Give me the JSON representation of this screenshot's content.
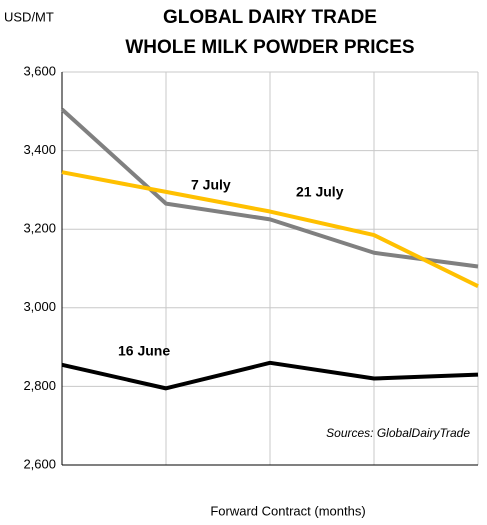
{
  "chart_data": {
    "type": "line",
    "title": [
      "GLOBAL DAIRY TRADE",
      "WHOLE MILK POWDER PRICES"
    ],
    "y_axis_label": "USD/MT",
    "x_axis_label": "Forward Contract (months)",
    "annotation": "Sources: GlobalDairyTrade",
    "categories": [
      null,
      null,
      null,
      null,
      null
    ],
    "series": [
      {
        "name": "16 June",
        "color": "#000000",
        "values": [
          2855,
          2795,
          2860,
          2820,
          2830
        ]
      },
      {
        "name": "7 July",
        "color": "#808080",
        "values": [
          3505,
          3265,
          3225,
          3140,
          3105
        ]
      },
      {
        "name": "21 July",
        "color": "#ffc000",
        "values": [
          3345,
          3295,
          3245,
          3185,
          3055
        ]
      }
    ],
    "ylim": [
      2600,
      3600
    ],
    "yticks": [
      {
        "value": 2600,
        "label": "2,600"
      },
      {
        "value": 2800,
        "label": "2,800"
      },
      {
        "value": 3000,
        "label": "3,000"
      },
      {
        "value": 3200,
        "label": "3,200"
      },
      {
        "value": 3400,
        "label": "3,400"
      },
      {
        "value": 3600,
        "label": "3,600"
      }
    ],
    "grid": true
  }
}
